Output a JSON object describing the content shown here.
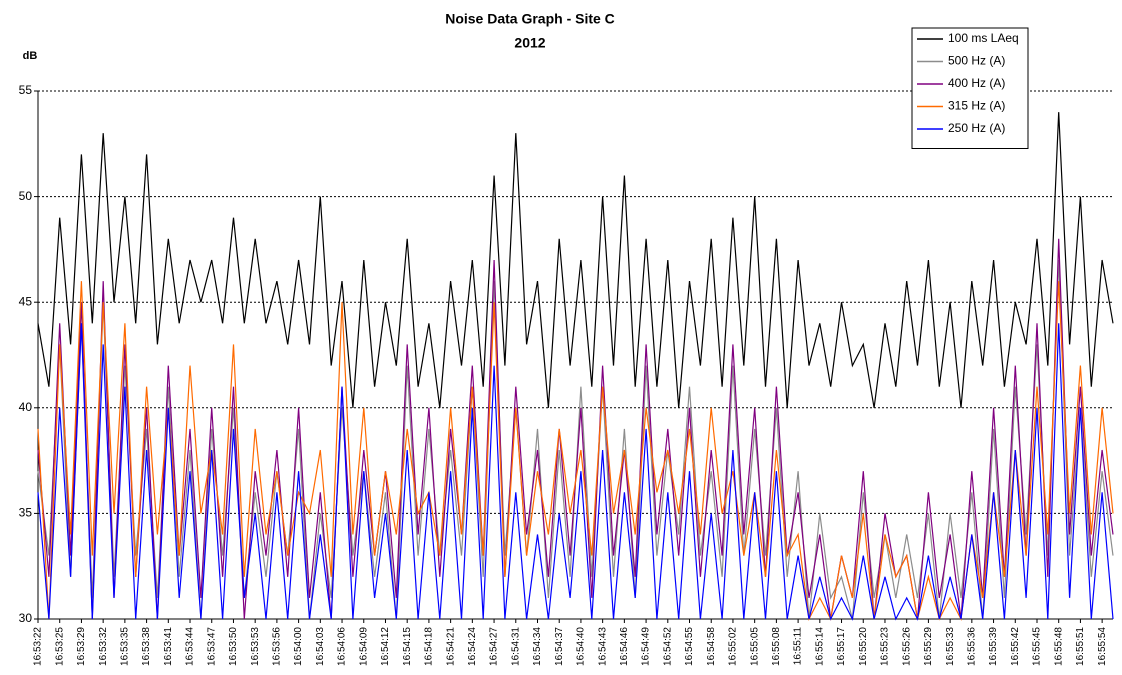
{
  "chart_data": {
    "type": "line",
    "title": "Noise Data Graph - Site C",
    "subtitle": "2012",
    "y_label": "dB",
    "categories": [
      "16:53:22",
      null,
      "16:53:25",
      null,
      "16:53:29",
      null,
      "16:53:32",
      null,
      "16:53:35",
      null,
      "16:53:38",
      null,
      "16:53:41",
      null,
      "16:53:44",
      null,
      "16:53:47",
      null,
      "16:53:50",
      null,
      "16:53:53",
      null,
      "16:53:56",
      null,
      "16:54:00",
      null,
      "16:54:03",
      null,
      "16:54:06",
      null,
      "16:54:09",
      null,
      "16:54:12",
      null,
      "16:54:15",
      null,
      "16:54:18",
      null,
      "16:54:21",
      null,
      "16:54:24",
      null,
      "16:54:27",
      null,
      "16:54:31",
      null,
      "16:54:34",
      null,
      "16:54:37",
      null,
      "16:54:40",
      null,
      "16:54:43",
      null,
      "16:54:46",
      null,
      "16:54:49",
      null,
      "16:54:52",
      null,
      "16:54:55",
      null,
      "16:54:58",
      null,
      "16:55:02",
      null,
      "16:55:05",
      null,
      "16:55:08",
      null,
      "16:55:11",
      null,
      "16:55:14",
      null,
      "16:55:17",
      null,
      "16:55:20",
      null,
      "16:55:23",
      null,
      "16:55:26",
      null,
      "16:55:29",
      null,
      "16:55:33",
      null,
      "16:55:36",
      null,
      "16:55:39",
      null,
      "16:55:42",
      null,
      "16:55:45",
      null,
      "16:55:48",
      null,
      "16:55:51",
      null,
      "16:55:54",
      null
    ],
    "series": [
      {
        "name": "100 ms LAeq",
        "color": "#000000",
        "values": [
          44,
          41,
          49,
          43,
          52,
          44,
          53,
          45,
          50,
          44,
          52,
          43,
          48,
          44,
          47,
          45,
          47,
          44,
          49,
          44,
          48,
          44,
          46,
          43,
          47,
          43,
          50,
          42,
          46,
          40,
          47,
          41,
          45,
          42,
          48,
          41,
          44,
          40,
          46,
          42,
          47,
          41,
          51,
          42,
          53,
          43,
          46,
          40,
          48,
          42,
          47,
          41,
          50,
          42,
          51,
          41,
          48,
          41,
          47,
          40,
          46,
          42,
          48,
          41,
          49,
          42,
          50,
          41,
          48,
          40,
          47,
          42,
          44,
          41,
          45,
          42,
          43,
          40,
          44,
          41,
          46,
          42,
          47,
          41,
          45,
          40,
          46,
          42,
          47,
          41,
          45,
          43,
          48,
          42,
          54,
          43,
          50,
          41,
          47,
          44
        ]
      },
      {
        "name": "500 Hz (A)",
        "color": "#8c8c8c",
        "values": [
          37,
          33,
          43,
          32,
          44,
          31,
          45,
          32,
          42,
          33,
          39,
          31,
          41,
          32,
          38,
          30,
          39,
          33,
          40,
          31,
          36,
          32,
          37,
          33,
          39,
          30,
          35,
          31,
          40,
          33,
          37,
          32,
          36,
          30,
          42,
          33,
          39,
          33,
          38,
          33,
          41,
          32,
          46,
          33,
          40,
          33,
          39,
          31,
          38,
          32,
          41,
          32,
          41,
          32,
          39,
          31,
          42,
          33,
          38,
          34,
          41,
          33,
          37,
          32,
          42,
          33,
          39,
          33,
          40,
          32,
          37,
          30,
          35,
          31,
          32,
          30,
          36,
          31,
          34,
          31,
          34,
          31,
          35,
          30,
          35,
          31,
          36,
          30,
          39,
          31,
          41,
          34,
          43,
          33,
          47,
          33,
          40,
          32,
          37,
          33
        ]
      },
      {
        "name": "400 Hz (A)",
        "color": "#800080",
        "values": [
          38,
          32,
          44,
          33,
          45,
          30,
          46,
          31,
          43,
          32,
          40,
          30,
          42,
          33,
          39,
          31,
          40,
          32,
          41,
          30,
          37,
          33,
          38,
          32,
          40,
          31,
          36,
          30,
          41,
          32,
          38,
          33,
          37,
          31,
          43,
          34,
          40,
          32,
          39,
          34,
          42,
          33,
          47,
          32,
          41,
          34,
          38,
          32,
          39,
          33,
          40,
          31,
          42,
          33,
          38,
          32,
          43,
          34,
          39,
          33,
          40,
          32,
          38,
          33,
          43,
          34,
          40,
          32,
          41,
          33,
          36,
          31,
          34,
          30,
          33,
          31,
          37,
          30,
          35,
          32,
          33,
          30,
          36,
          31,
          34,
          30,
          37,
          31,
          40,
          32,
          42,
          33,
          44,
          32,
          48,
          34,
          41,
          33,
          38,
          34
        ]
      },
      {
        "name": "315 Hz (A)",
        "color": "#ff6a00",
        "values": [
          39,
          30,
          43,
          34,
          46,
          33,
          45,
          35,
          44,
          32,
          41,
          34,
          40,
          33,
          42,
          35,
          38,
          34,
          43,
          32,
          39,
          34,
          37,
          33,
          36,
          35,
          38,
          32,
          45,
          34,
          40,
          33,
          37,
          34,
          39,
          35,
          36,
          33,
          40,
          34,
          41,
          33,
          45,
          32,
          40,
          33,
          37,
          34,
          39,
          35,
          38,
          33,
          41,
          35,
          38,
          34,
          40,
          36,
          38,
          35,
          39,
          34,
          40,
          35,
          37,
          33,
          36,
          32,
          38,
          33,
          34,
          30,
          31,
          30,
          33,
          31,
          35,
          30,
          34,
          32,
          33,
          30,
          32,
          30,
          31,
          30,
          34,
          31,
          36,
          32,
          38,
          33,
          41,
          34,
          46,
          35,
          42,
          34,
          40,
          35
        ]
      },
      {
        "name": "250 Hz (A)",
        "color": "#0000ff",
        "values": [
          36,
          30,
          40,
          32,
          44,
          30,
          43,
          31,
          41,
          30,
          38,
          30,
          40,
          31,
          37,
          30,
          38,
          30,
          39,
          31,
          35,
          30,
          36,
          30,
          37,
          30,
          34,
          30,
          41,
          30,
          37,
          31,
          35,
          30,
          38,
          30,
          36,
          30,
          37,
          30,
          40,
          30,
          42,
          30,
          36,
          30,
          34,
          30,
          35,
          31,
          37,
          30,
          38,
          30,
          36,
          31,
          39,
          30,
          36,
          30,
          37,
          30,
          35,
          30,
          38,
          30,
          36,
          30,
          37,
          30,
          33,
          30,
          32,
          30,
          31,
          30,
          33,
          30,
          32,
          30,
          31,
          30,
          33,
          30,
          32,
          30,
          34,
          30,
          36,
          30,
          38,
          31,
          40,
          30,
          44,
          31,
          40,
          30,
          36,
          30
        ]
      }
    ],
    "ylim": [
      30,
      55
    ],
    "yticks": [
      30,
      35,
      40,
      45,
      50,
      55
    ],
    "grid": true,
    "legend": "upper right"
  }
}
